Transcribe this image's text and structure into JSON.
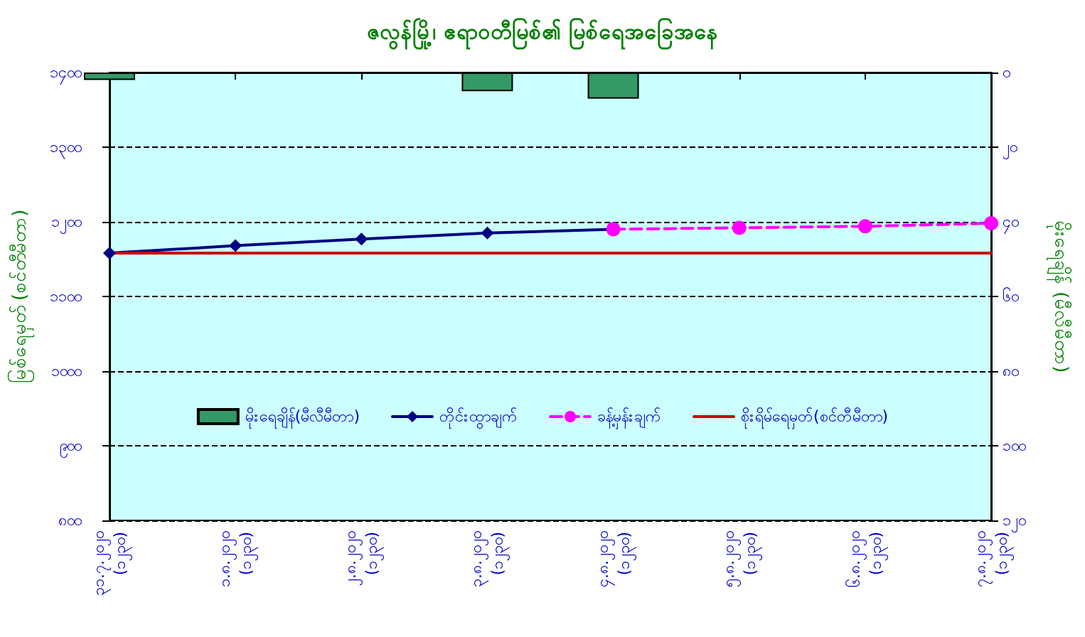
{
  "chart_data": {
    "type": "line",
    "title": "ဇလွန်မြို့၊ ဧရာဝတီမြစ်၏ မြစ်ရေအခြေအနေ",
    "ylabel": "မြစ်ရေမှတ် (စင်တီမီတာ)",
    "y2label": "မိုးရေချိန် (မီလီမီတာ)",
    "categories": [
      "၃၁.၇.၂၀၂၀\n(၁၂၃၀)",
      "၁.၈.၂၀၂၀\n(၁၂၃၀)",
      "၂.၈.၂၀၂၀\n(၁၂၃၀)",
      "၃.၈.၂၀၂၀\n(၁၂၃၀)",
      "၄.၈.၂၀၂၀\n(၁၂၃၀)",
      "၅.၈.၂၀၂၀\n(၁၂၃၀)",
      "၆.၈.၂၀၂၀\n(၁၂၃၀)",
      "၇.၈.၂၀၂၀\n(၁၂၃၀)"
    ],
    "series": [
      {
        "name": "မိုးရေချိန်(မီလီမီတာ)",
        "type": "bar",
        "axis": "y2",
        "color": "#339966",
        "values": [
          2,
          null,
          null,
          5,
          7,
          null,
          null,
          null
        ]
      },
      {
        "name": "တိုင်းထွာချက်",
        "color": "#000080",
        "marker": "diamond",
        "line_style": "solid",
        "values": [
          1158,
          1168,
          1177,
          1185,
          1190,
          null,
          null,
          null
        ]
      },
      {
        "name": "ခန့်မှန်းချက်",
        "color": "#ff00ff",
        "marker": "circle",
        "line_style": "dashed",
        "values": [
          null,
          null,
          null,
          null,
          1190,
          1192,
          1194,
          1198
        ]
      },
      {
        "name": "စိုးရိမ်ရေမှတ်(စင်တီမီတာ)",
        "color": "#cc0000",
        "marker": "none",
        "line_style": "solid",
        "values": [
          1158,
          1158,
          1158,
          1158,
          1158,
          1158,
          1158,
          1158
        ]
      }
    ],
    "ylim": [
      800,
      1400
    ],
    "yticks": [
      {
        "value": 800,
        "label": "၈၀၀"
      },
      {
        "value": 900,
        "label": "၉၀၀"
      },
      {
        "value": 1000,
        "label": "၁၀၀၀"
      },
      {
        "value": 1100,
        "label": "၁၁၀၀"
      },
      {
        "value": 1200,
        "label": "၁၂၀၀"
      },
      {
        "value": 1300,
        "label": "၁၃၀၀"
      },
      {
        "value": 1400,
        "label": "၁၄၀၀"
      }
    ],
    "y2lim": [
      120,
      0
    ],
    "y2ticks": [
      {
        "value": 0,
        "label": "၀"
      },
      {
        "value": 20,
        "label": "၂၀"
      },
      {
        "value": 40,
        "label": "၄၀"
      },
      {
        "value": 60,
        "label": "၆၀"
      },
      {
        "value": 80,
        "label": "၈၀"
      },
      {
        "value": 100,
        "label": "၁၀၀"
      },
      {
        "value": 120,
        "label": "၁၂၀"
      }
    ],
    "grid": "y",
    "legend": "bottom"
  }
}
